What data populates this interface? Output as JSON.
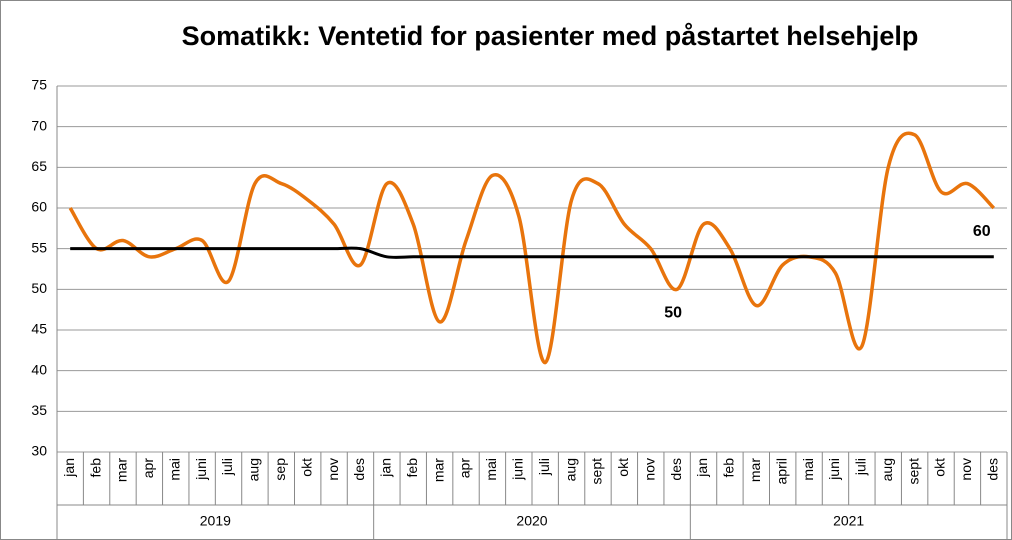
{
  "chart_data": {
    "type": "line",
    "title": "Somatikk: Ventetid for pasienter med påstartet helsehjelp",
    "categories": [
      "jan",
      "feb",
      "mar",
      "apr",
      "mai",
      "juni",
      "juli",
      "aug",
      "sep",
      "okt",
      "nov",
      "des",
      "jan",
      "feb",
      "mar",
      "apr",
      "mai",
      "juni",
      "juli",
      "aug",
      "sept",
      "okt",
      "nov",
      "des",
      "jan",
      "feb",
      "mar",
      "april",
      "mai",
      "juni",
      "juli",
      "aug",
      "sept",
      "okt",
      "nov",
      "des"
    ],
    "x_groups": [
      "2019",
      "2020",
      "2021"
    ],
    "series": [
      {
        "color": "#e8740c",
        "values": [
          60,
          55,
          56,
          54,
          55,
          56,
          51,
          63,
          63,
          61,
          58,
          53,
          63,
          58,
          46,
          56,
          64,
          59,
          41,
          61,
          63,
          58,
          55,
          50,
          58,
          55,
          48,
          53,
          54,
          52,
          43,
          65,
          69,
          62,
          63,
          60
        ]
      },
      {
        "color": "#000000",
        "values": [
          55,
          55,
          55,
          55,
          55,
          55,
          55,
          55,
          55,
          55,
          55,
          55,
          54,
          54,
          54,
          54,
          54,
          54,
          54,
          54,
          54,
          54,
          54,
          54,
          54,
          54,
          54,
          54,
          54,
          54,
          54,
          54,
          54,
          54,
          54,
          54
        ]
      }
    ],
    "ylim": [
      30,
      75
    ],
    "yticks": [
      30,
      35,
      40,
      45,
      50,
      55,
      60,
      65,
      70,
      75
    ],
    "grid": true
  }
}
